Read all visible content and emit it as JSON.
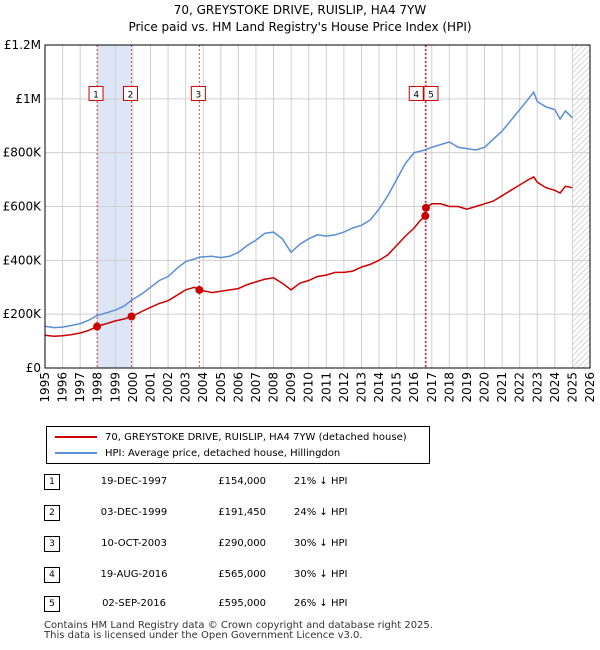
{
  "title": "70, GREYSTOKE DRIVE, RUISLIP, HA4 7YW",
  "subtitle": "Price paid vs. HM Land Registry's House Price Index (HPI)",
  "colors": {
    "property": "#cc0000",
    "hpi": "#5b8ed6",
    "shade": "#dde6f7",
    "grid": "#d0d0d0"
  },
  "chart_data": {
    "type": "line",
    "xlim": [
      1995,
      2026
    ],
    "ylim": [
      0,
      1200000
    ],
    "y_ticks": [
      0,
      200000,
      400000,
      600000,
      800000,
      1000000,
      1200000
    ],
    "y_tick_labels": [
      "£0",
      "£200K",
      "£400K",
      "£600K",
      "£800K",
      "£1M",
      "£1.2M"
    ],
    "x_ticks": [
      "1995",
      "1996",
      "1997",
      "1998",
      "1999",
      "2000",
      "2001",
      "2002",
      "2003",
      "2004",
      "2005",
      "2006",
      "2007",
      "2008",
      "2009",
      "2010",
      "2011",
      "2012",
      "2013",
      "2014",
      "2015",
      "2016",
      "2017",
      "2018",
      "2019",
      "2020",
      "2021",
      "2022",
      "2023",
      "2024",
      "2025",
      "2026"
    ],
    "shaded_ranges": [
      [
        1997.96,
        1999.92
      ],
      [
        2016.63,
        2016.67
      ]
    ],
    "hatch_from": 2025.0,
    "series": [
      {
        "name": "HPI: Average price, detached house, Hillingdon",
        "points": [
          [
            1995.0,
            155000
          ],
          [
            1995.5,
            150000
          ],
          [
            1996.0,
            152000
          ],
          [
            1996.5,
            158000
          ],
          [
            1997.0,
            165000
          ],
          [
            1997.5,
            178000
          ],
          [
            1997.96,
            195000
          ],
          [
            1998.5,
            205000
          ],
          [
            1999.0,
            215000
          ],
          [
            1999.5,
            230000
          ],
          [
            1999.92,
            252000
          ],
          [
            2000.5,
            275000
          ],
          [
            2001.0,
            300000
          ],
          [
            2001.5,
            325000
          ],
          [
            2002.0,
            340000
          ],
          [
            2002.5,
            370000
          ],
          [
            2003.0,
            395000
          ],
          [
            2003.5,
            405000
          ],
          [
            2003.78,
            412000
          ],
          [
            2004.5,
            415000
          ],
          [
            2005.0,
            410000
          ],
          [
            2005.5,
            415000
          ],
          [
            2006.0,
            430000
          ],
          [
            2006.5,
            455000
          ],
          [
            2007.0,
            475000
          ],
          [
            2007.5,
            500000
          ],
          [
            2008.0,
            505000
          ],
          [
            2008.5,
            480000
          ],
          [
            2009.0,
            430000
          ],
          [
            2009.5,
            460000
          ],
          [
            2010.0,
            480000
          ],
          [
            2010.5,
            495000
          ],
          [
            2011.0,
            490000
          ],
          [
            2011.5,
            495000
          ],
          [
            2012.0,
            505000
          ],
          [
            2012.5,
            520000
          ],
          [
            2013.0,
            530000
          ],
          [
            2013.5,
            550000
          ],
          [
            2014.0,
            590000
          ],
          [
            2014.5,
            640000
          ],
          [
            2015.0,
            700000
          ],
          [
            2015.5,
            760000
          ],
          [
            2016.0,
            800000
          ],
          [
            2016.5,
            808000
          ],
          [
            2017.0,
            820000
          ],
          [
            2017.5,
            830000
          ],
          [
            2018.0,
            840000
          ],
          [
            2018.5,
            820000
          ],
          [
            2019.0,
            815000
          ],
          [
            2019.5,
            810000
          ],
          [
            2020.0,
            820000
          ],
          [
            2020.5,
            850000
          ],
          [
            2021.0,
            880000
          ],
          [
            2021.5,
            920000
          ],
          [
            2022.0,
            960000
          ],
          [
            2022.5,
            1000000
          ],
          [
            2022.8,
            1025000
          ],
          [
            2023.0,
            990000
          ],
          [
            2023.5,
            970000
          ],
          [
            2024.0,
            960000
          ],
          [
            2024.3,
            925000
          ],
          [
            2024.6,
            955000
          ],
          [
            2025.0,
            930000
          ]
        ]
      },
      {
        "name": "70, GREYSTOKE DRIVE, RUISLIP, HA4 7YW (detached house)",
        "points": [
          [
            1995.0,
            122000
          ],
          [
            1995.5,
            118000
          ],
          [
            1996.0,
            120000
          ],
          [
            1996.5,
            124000
          ],
          [
            1997.0,
            130000
          ],
          [
            1997.5,
            140000
          ],
          [
            1997.96,
            154000
          ],
          [
            1998.5,
            165000
          ],
          [
            1999.0,
            175000
          ],
          [
            1999.5,
            182000
          ],
          [
            1999.92,
            191450
          ],
          [
            2000.5,
            210000
          ],
          [
            2001.0,
            225000
          ],
          [
            2001.5,
            240000
          ],
          [
            2002.0,
            250000
          ],
          [
            2002.5,
            270000
          ],
          [
            2003.0,
            290000
          ],
          [
            2003.5,
            300000
          ],
          [
            2003.78,
            290000
          ],
          [
            2004.5,
            280000
          ],
          [
            2005.0,
            285000
          ],
          [
            2005.5,
            290000
          ],
          [
            2006.0,
            295000
          ],
          [
            2006.5,
            310000
          ],
          [
            2007.0,
            320000
          ],
          [
            2007.5,
            330000
          ],
          [
            2008.0,
            335000
          ],
          [
            2008.5,
            315000
          ],
          [
            2009.0,
            290000
          ],
          [
            2009.5,
            315000
          ],
          [
            2010.0,
            325000
          ],
          [
            2010.5,
            340000
          ],
          [
            2011.0,
            345000
          ],
          [
            2011.5,
            355000
          ],
          [
            2012.0,
            355000
          ],
          [
            2012.5,
            360000
          ],
          [
            2013.0,
            375000
          ],
          [
            2013.5,
            385000
          ],
          [
            2014.0,
            400000
          ],
          [
            2014.5,
            420000
          ],
          [
            2015.0,
            455000
          ],
          [
            2015.5,
            490000
          ],
          [
            2016.0,
            520000
          ],
          [
            2016.3,
            545000
          ],
          [
            2016.63,
            565000
          ],
          [
            2016.67,
            595000
          ],
          [
            2017.0,
            610000
          ],
          [
            2017.5,
            610000
          ],
          [
            2018.0,
            600000
          ],
          [
            2018.5,
            600000
          ],
          [
            2019.0,
            590000
          ],
          [
            2019.5,
            600000
          ],
          [
            2020.0,
            610000
          ],
          [
            2020.5,
            620000
          ],
          [
            2021.0,
            640000
          ],
          [
            2021.5,
            660000
          ],
          [
            2022.0,
            680000
          ],
          [
            2022.5,
            700000
          ],
          [
            2022.8,
            710000
          ],
          [
            2023.0,
            690000
          ],
          [
            2023.5,
            670000
          ],
          [
            2024.0,
            660000
          ],
          [
            2024.3,
            650000
          ],
          [
            2024.6,
            675000
          ],
          [
            2025.0,
            670000
          ]
        ]
      }
    ],
    "sales": [
      {
        "label": "1",
        "x": 1997.96,
        "y": 154000
      },
      {
        "label": "2",
        "x": 1999.92,
        "y": 191450
      },
      {
        "label": "3",
        "x": 2003.78,
        "y": 290000
      },
      {
        "label": "4",
        "x": 2016.63,
        "y": 565000
      },
      {
        "label": "5",
        "x": 2016.67,
        "y": 595000
      }
    ],
    "marker_label_y": 1020000
  },
  "legend": {
    "property": "70, GREYSTOKE DRIVE, RUISLIP, HA4 7YW (detached house)",
    "hpi": "HPI: Average price, detached house, Hillingdon"
  },
  "transactions": [
    {
      "num": "1",
      "date": "19-DEC-1997",
      "price": "£154,000",
      "hpi": "21% ↓ HPI"
    },
    {
      "num": "2",
      "date": "03-DEC-1999",
      "price": "£191,450",
      "hpi": "24% ↓ HPI"
    },
    {
      "num": "3",
      "date": "10-OCT-2003",
      "price": "£290,000",
      "hpi": "30% ↓ HPI"
    },
    {
      "num": "4",
      "date": "19-AUG-2016",
      "price": "£565,000",
      "hpi": "30% ↓ HPI"
    },
    {
      "num": "5",
      "date": "02-SEP-2016",
      "price": "£595,000",
      "hpi": "26% ↓ HPI"
    }
  ],
  "footer": {
    "line1": "Contains HM Land Registry data © Crown copyright and database right 2025.",
    "line2": "This data is licensed under the Open Government Licence v3.0."
  }
}
